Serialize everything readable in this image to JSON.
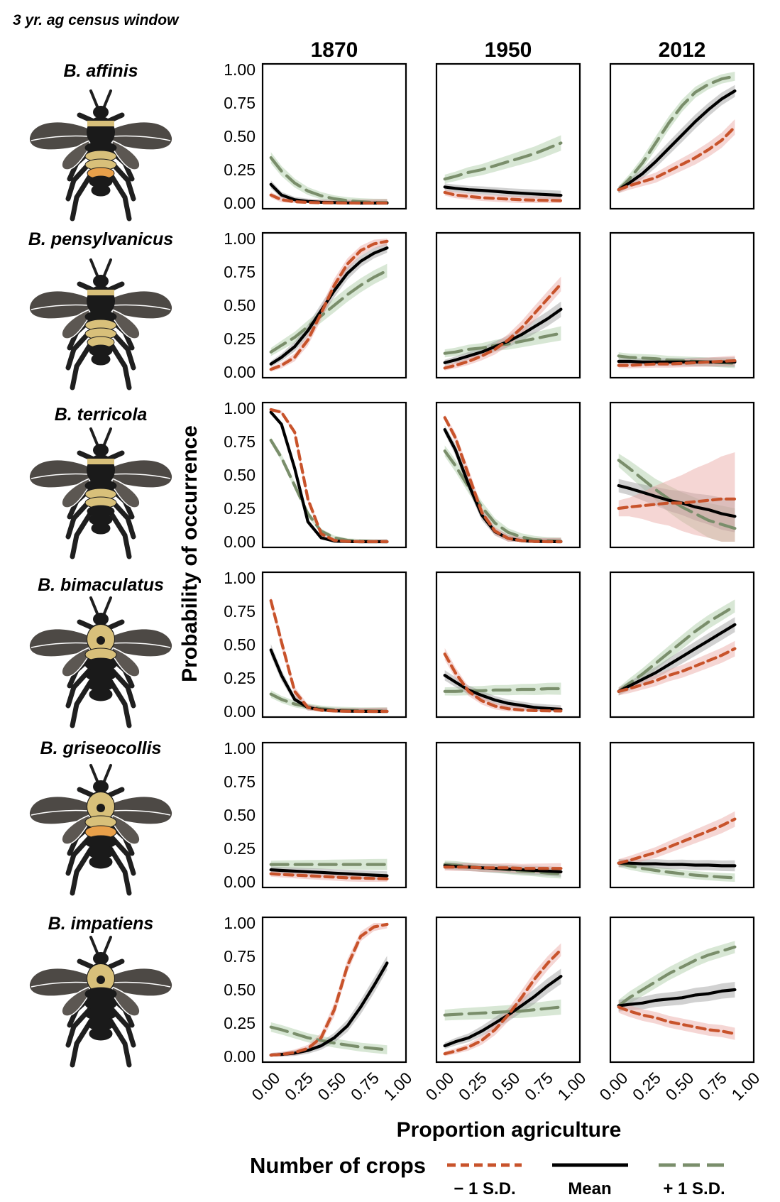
{
  "corner_label": "3 yr. ag census window",
  "chart_data": {
    "type": "line",
    "xlabel": "Proportion agriculture",
    "ylabel": "Probability of occurrence",
    "xlim": [
      0,
      1
    ],
    "ylim": [
      0,
      1
    ],
    "x_ticks": [
      "0.00",
      "0.25",
      "0.50",
      "0.75",
      "1.00"
    ],
    "y_ticks": [
      "0.00",
      "0.25",
      "0.50",
      "0.75",
      "1.00"
    ],
    "grid": false,
    "columns": [
      "1870",
      "1950",
      "2012"
    ],
    "species": [
      "B. affinis",
      "B. pensylvanicus",
      "B. terricola",
      "B. bimaculatus",
      "B. griseocollis",
      "B. impatiens"
    ],
    "legend": {
      "title": "Number of crops",
      "position": "bottom",
      "entries": [
        {
          "key": "minus",
          "label": "− 1 S.D.",
          "color": "#c8532b",
          "style": "short-dash"
        },
        {
          "key": "mean",
          "label": "Mean",
          "color": "#000000",
          "style": "solid"
        },
        {
          "key": "plus",
          "label": "+ 1 S.D.",
          "color": "#7a8e6b",
          "style": "long-dash"
        }
      ]
    },
    "band_colors": {
      "minus": "#e8a5a0",
      "mean": "#9a9a9a",
      "plus": "#a9c9a1"
    },
    "x_samples": [
      0.02,
      0.1,
      0.2,
      0.3,
      0.4,
      0.5,
      0.6,
      0.7,
      0.8,
      0.9
    ],
    "panels": [
      {
        "species": "B. affinis",
        "year": "1870",
        "minus": [
          0.06,
          0.025,
          0.01,
          0.005,
          0.002,
          0.001,
          0.0,
          0.0,
          0.0,
          0.0
        ],
        "mean": [
          0.14,
          0.06,
          0.025,
          0.012,
          0.006,
          0.003,
          0.001,
          0.0,
          0.0,
          0.0
        ],
        "plus": [
          0.34,
          0.24,
          0.15,
          0.09,
          0.055,
          0.032,
          0.018,
          0.01,
          0.005,
          0.003
        ]
      },
      {
        "species": "B. affinis",
        "year": "1950",
        "minus": [
          0.08,
          0.06,
          0.05,
          0.04,
          0.035,
          0.03,
          0.025,
          0.022,
          0.02,
          0.018
        ],
        "mean": [
          0.12,
          0.11,
          0.1,
          0.095,
          0.088,
          0.08,
          0.074,
          0.068,
          0.063,
          0.058
        ],
        "plus": [
          0.18,
          0.2,
          0.23,
          0.25,
          0.28,
          0.31,
          0.34,
          0.37,
          0.41,
          0.45
        ]
      },
      {
        "species": "B. affinis",
        "year": "2012",
        "minus": [
          0.1,
          0.13,
          0.16,
          0.19,
          0.24,
          0.29,
          0.34,
          0.4,
          0.47,
          0.57
        ],
        "mean": [
          0.1,
          0.15,
          0.22,
          0.31,
          0.41,
          0.51,
          0.61,
          0.7,
          0.78,
          0.84
        ],
        "plus": [
          0.1,
          0.18,
          0.3,
          0.45,
          0.6,
          0.73,
          0.83,
          0.89,
          0.93,
          0.95
        ]
      },
      {
        "species": "B. pensylvanicus",
        "year": "1870",
        "minus": [
          0.02,
          0.05,
          0.11,
          0.24,
          0.44,
          0.65,
          0.81,
          0.91,
          0.96,
          0.98
        ],
        "mean": [
          0.06,
          0.11,
          0.19,
          0.31,
          0.46,
          0.61,
          0.74,
          0.83,
          0.89,
          0.93
        ],
        "plus": [
          0.15,
          0.2,
          0.26,
          0.34,
          0.42,
          0.5,
          0.58,
          0.65,
          0.71,
          0.76
        ]
      },
      {
        "species": "B. pensylvanicus",
        "year": "1950",
        "minus": [
          0.03,
          0.05,
          0.08,
          0.12,
          0.17,
          0.24,
          0.33,
          0.44,
          0.55,
          0.66
        ],
        "mean": [
          0.07,
          0.09,
          0.12,
          0.15,
          0.19,
          0.23,
          0.28,
          0.34,
          0.4,
          0.47
        ],
        "plus": [
          0.14,
          0.15,
          0.17,
          0.18,
          0.2,
          0.21,
          0.23,
          0.25,
          0.27,
          0.29
        ]
      },
      {
        "species": "B. pensylvanicus",
        "year": "2012",
        "minus": [
          0.05,
          0.05,
          0.055,
          0.06,
          0.06,
          0.065,
          0.07,
          0.075,
          0.08,
          0.085
        ],
        "mean": [
          0.08,
          0.08,
          0.075,
          0.075,
          0.075,
          0.075,
          0.075,
          0.075,
          0.075,
          0.075
        ],
        "plus": [
          0.12,
          0.11,
          0.105,
          0.1,
          0.09,
          0.085,
          0.08,
          0.075,
          0.07,
          0.065
        ]
      },
      {
        "species": "B. terricola",
        "year": "1870",
        "minus": [
          0.99,
          0.97,
          0.82,
          0.32,
          0.06,
          0.01,
          0.002,
          0.0,
          0.0,
          0.0
        ],
        "mean": [
          0.97,
          0.88,
          0.55,
          0.15,
          0.03,
          0.005,
          0.001,
          0.0,
          0.0,
          0.0
        ],
        "plus": [
          0.76,
          0.63,
          0.42,
          0.21,
          0.08,
          0.03,
          0.01,
          0.004,
          0.001,
          0.0
        ],
        "band_scale": 0.6
      },
      {
        "species": "B. terricola",
        "year": "1950",
        "minus": [
          0.93,
          0.78,
          0.5,
          0.22,
          0.08,
          0.025,
          0.008,
          0.002,
          0.0,
          0.0
        ],
        "mean": [
          0.84,
          0.69,
          0.43,
          0.2,
          0.075,
          0.025,
          0.008,
          0.002,
          0.001,
          0.0
        ],
        "plus": [
          0.68,
          0.57,
          0.41,
          0.26,
          0.14,
          0.07,
          0.035,
          0.016,
          0.007,
          0.003
        ]
      },
      {
        "species": "B. terricola",
        "year": "2012",
        "minus": [
          0.25,
          0.26,
          0.27,
          0.28,
          0.29,
          0.29,
          0.3,
          0.31,
          0.32,
          0.32
        ],
        "mean": [
          0.42,
          0.4,
          0.37,
          0.34,
          0.31,
          0.29,
          0.26,
          0.24,
          0.21,
          0.19
        ],
        "plus": [
          0.61,
          0.55,
          0.47,
          0.39,
          0.32,
          0.26,
          0.21,
          0.16,
          0.13,
          0.1
        ],
        "bands": {
          "minus": [
            0.06,
            0.07,
            0.1,
            0.14,
            0.17,
            0.21,
            0.25,
            0.28,
            0.32,
            0.35
          ],
          "mean": [
            0.05,
            0.05,
            0.06,
            0.07,
            0.08,
            0.09,
            0.1,
            0.11,
            0.12,
            0.12
          ],
          "plus": [
            0.05,
            0.06,
            0.07,
            0.08,
            0.1,
            0.11,
            0.12,
            0.13,
            0.14,
            0.15
          ]
        }
      },
      {
        "species": "B. bimaculatus",
        "year": "1870",
        "minus": [
          0.83,
          0.52,
          0.15,
          0.03,
          0.008,
          0.003,
          0.001,
          0.0,
          0.0,
          0.0
        ],
        "mean": [
          0.46,
          0.27,
          0.09,
          0.03,
          0.012,
          0.005,
          0.002,
          0.001,
          0.0,
          0.0
        ],
        "plus": [
          0.13,
          0.09,
          0.055,
          0.035,
          0.02,
          0.012,
          0.008,
          0.005,
          0.003,
          0.002
        ]
      },
      {
        "species": "B. bimaculatus",
        "year": "1950",
        "minus": [
          0.43,
          0.29,
          0.15,
          0.08,
          0.04,
          0.02,
          0.01,
          0.006,
          0.004,
          0.003
        ],
        "mean": [
          0.27,
          0.22,
          0.16,
          0.12,
          0.085,
          0.06,
          0.045,
          0.03,
          0.022,
          0.016
        ],
        "plus": [
          0.15,
          0.15,
          0.155,
          0.155,
          0.16,
          0.16,
          0.165,
          0.165,
          0.17,
          0.17
        ]
      },
      {
        "species": "B. bimaculatus",
        "year": "2012",
        "minus": [
          0.15,
          0.17,
          0.2,
          0.23,
          0.27,
          0.3,
          0.34,
          0.38,
          0.42,
          0.47
        ],
        "mean": [
          0.15,
          0.19,
          0.24,
          0.29,
          0.35,
          0.41,
          0.47,
          0.53,
          0.59,
          0.65
        ],
        "plus": [
          0.15,
          0.21,
          0.28,
          0.36,
          0.44,
          0.52,
          0.6,
          0.67,
          0.73,
          0.79
        ]
      },
      {
        "species": "B. griseocollis",
        "year": "1870",
        "minus": [
          0.06,
          0.055,
          0.05,
          0.045,
          0.04,
          0.035,
          0.03,
          0.028,
          0.025,
          0.022
        ],
        "mean": [
          0.09,
          0.085,
          0.08,
          0.075,
          0.07,
          0.065,
          0.06,
          0.055,
          0.05,
          0.045
        ],
        "plus": [
          0.13,
          0.13,
          0.13,
          0.13,
          0.13,
          0.13,
          0.13,
          0.13,
          0.13,
          0.13
        ]
      },
      {
        "species": "B. griseocollis",
        "year": "1950",
        "minus": [
          0.11,
          0.11,
          0.11,
          0.105,
          0.105,
          0.105,
          0.1,
          0.1,
          0.1,
          0.1
        ],
        "mean": [
          0.12,
          0.115,
          0.11,
          0.105,
          0.1,
          0.095,
          0.09,
          0.085,
          0.08,
          0.075
        ],
        "plus": [
          0.13,
          0.125,
          0.115,
          0.105,
          0.1,
          0.09,
          0.08,
          0.075,
          0.065,
          0.06
        ]
      },
      {
        "species": "B. griseocollis",
        "year": "2012",
        "minus": [
          0.14,
          0.16,
          0.19,
          0.22,
          0.26,
          0.3,
          0.34,
          0.38,
          0.42,
          0.47
        ],
        "mean": [
          0.14,
          0.14,
          0.135,
          0.135,
          0.13,
          0.13,
          0.125,
          0.125,
          0.12,
          0.12
        ],
        "plus": [
          0.14,
          0.12,
          0.1,
          0.085,
          0.072,
          0.06,
          0.05,
          0.042,
          0.035,
          0.03
        ]
      },
      {
        "species": "B. impatiens",
        "year": "1870",
        "minus": [
          0.01,
          0.015,
          0.03,
          0.06,
          0.14,
          0.35,
          0.68,
          0.9,
          0.97,
          0.99
        ],
        "mean": [
          0.01,
          0.015,
          0.025,
          0.045,
          0.08,
          0.14,
          0.23,
          0.37,
          0.53,
          0.7
        ],
        "plus": [
          0.22,
          0.2,
          0.17,
          0.14,
          0.12,
          0.1,
          0.085,
          0.07,
          0.06,
          0.05
        ]
      },
      {
        "species": "B. impatiens",
        "year": "1950",
        "minus": [
          0.02,
          0.04,
          0.07,
          0.12,
          0.2,
          0.31,
          0.44,
          0.58,
          0.7,
          0.8
        ],
        "mean": [
          0.08,
          0.11,
          0.14,
          0.19,
          0.25,
          0.31,
          0.38,
          0.45,
          0.53,
          0.6
        ],
        "plus": [
          0.31,
          0.315,
          0.32,
          0.325,
          0.33,
          0.335,
          0.34,
          0.35,
          0.36,
          0.37
        ]
      },
      {
        "species": "B. impatiens",
        "year": "2012",
        "minus": [
          0.37,
          0.34,
          0.31,
          0.29,
          0.26,
          0.24,
          0.22,
          0.2,
          0.19,
          0.17
        ],
        "mean": [
          0.38,
          0.39,
          0.4,
          0.42,
          0.43,
          0.44,
          0.46,
          0.47,
          0.49,
          0.5
        ],
        "plus": [
          0.38,
          0.44,
          0.5,
          0.56,
          0.62,
          0.67,
          0.72,
          0.76,
          0.79,
          0.82
        ]
      }
    ]
  }
}
